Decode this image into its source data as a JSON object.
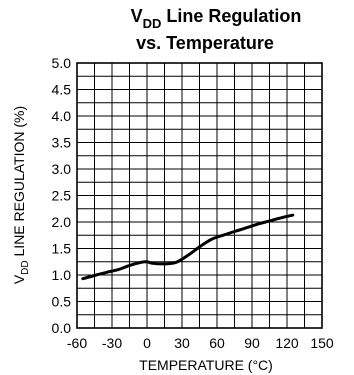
{
  "chart_data": {
    "type": "line",
    "title": {
      "line1_main": "V",
      "line1_sub": "DD",
      "line1_rest": " Line Regulation",
      "line2": "vs. Temperature"
    },
    "xlabel": "TEMPERATURE (°C)",
    "ylabel": {
      "main": "V",
      "sub": "DD",
      "rest": " LINE REGULATION (%)"
    },
    "xlim": [
      -60,
      150
    ],
    "ylim": [
      0.0,
      5.0
    ],
    "x_ticks": [
      "-60",
      "-30",
      "0",
      "30",
      "60",
      "90",
      "120",
      "150"
    ],
    "y_ticks": [
      "0.0",
      "0.5",
      "1.0",
      "1.5",
      "2.0",
      "2.5",
      "3.0",
      "3.5",
      "4.0",
      "4.5",
      "5.0"
    ],
    "x_minor_step": 15,
    "y_minor_step": 0.25,
    "grid": true,
    "series": [
      {
        "x": [
          -55,
          -45,
          -35,
          -25,
          -15,
          -5,
          0,
          5,
          15,
          25,
          35,
          45,
          55,
          65,
          75,
          85,
          95,
          105,
          115,
          125
        ],
        "y": [
          0.93,
          0.99,
          1.05,
          1.1,
          1.18,
          1.24,
          1.25,
          1.22,
          1.21,
          1.24,
          1.37,
          1.53,
          1.67,
          1.75,
          1.82,
          1.89,
          1.96,
          2.02,
          2.08,
          2.13
        ]
      }
    ],
    "colors": {
      "line": "#000000",
      "grid": "#000000",
      "background": "#ffffff"
    }
  }
}
